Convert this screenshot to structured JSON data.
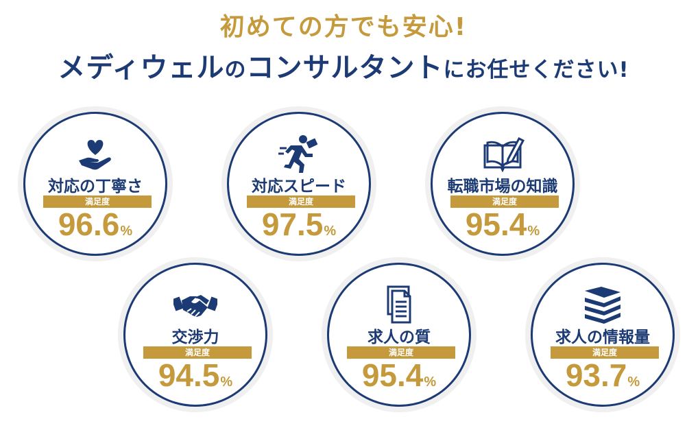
{
  "headline": {
    "line1": "初めての方でも安心!",
    "brand": "メディウェル",
    "no": "の",
    "consultant": "コンサルタント",
    "rest": "にお任せください!"
  },
  "bar_label": "満足度",
  "unit": "%",
  "items": [
    {
      "label": "対応の丁寧さ",
      "value": "96.6",
      "icon": "heart-hand-icon"
    },
    {
      "label": "対応スピード",
      "value": "97.5",
      "icon": "running-person-icon"
    },
    {
      "label": "転職市場の知識",
      "value": "95.4",
      "icon": "open-book-icon"
    },
    {
      "label": "交渉力",
      "value": "94.5",
      "icon": "handshake-icon"
    },
    {
      "label": "求人の質",
      "value": "95.4",
      "icon": "document-icon"
    },
    {
      "label": "求人の情報量",
      "value": "93.7",
      "icon": "stacked-books-icon"
    }
  ],
  "colors": {
    "navy": "#1c3a73",
    "gold": "#c59a3c"
  }
}
